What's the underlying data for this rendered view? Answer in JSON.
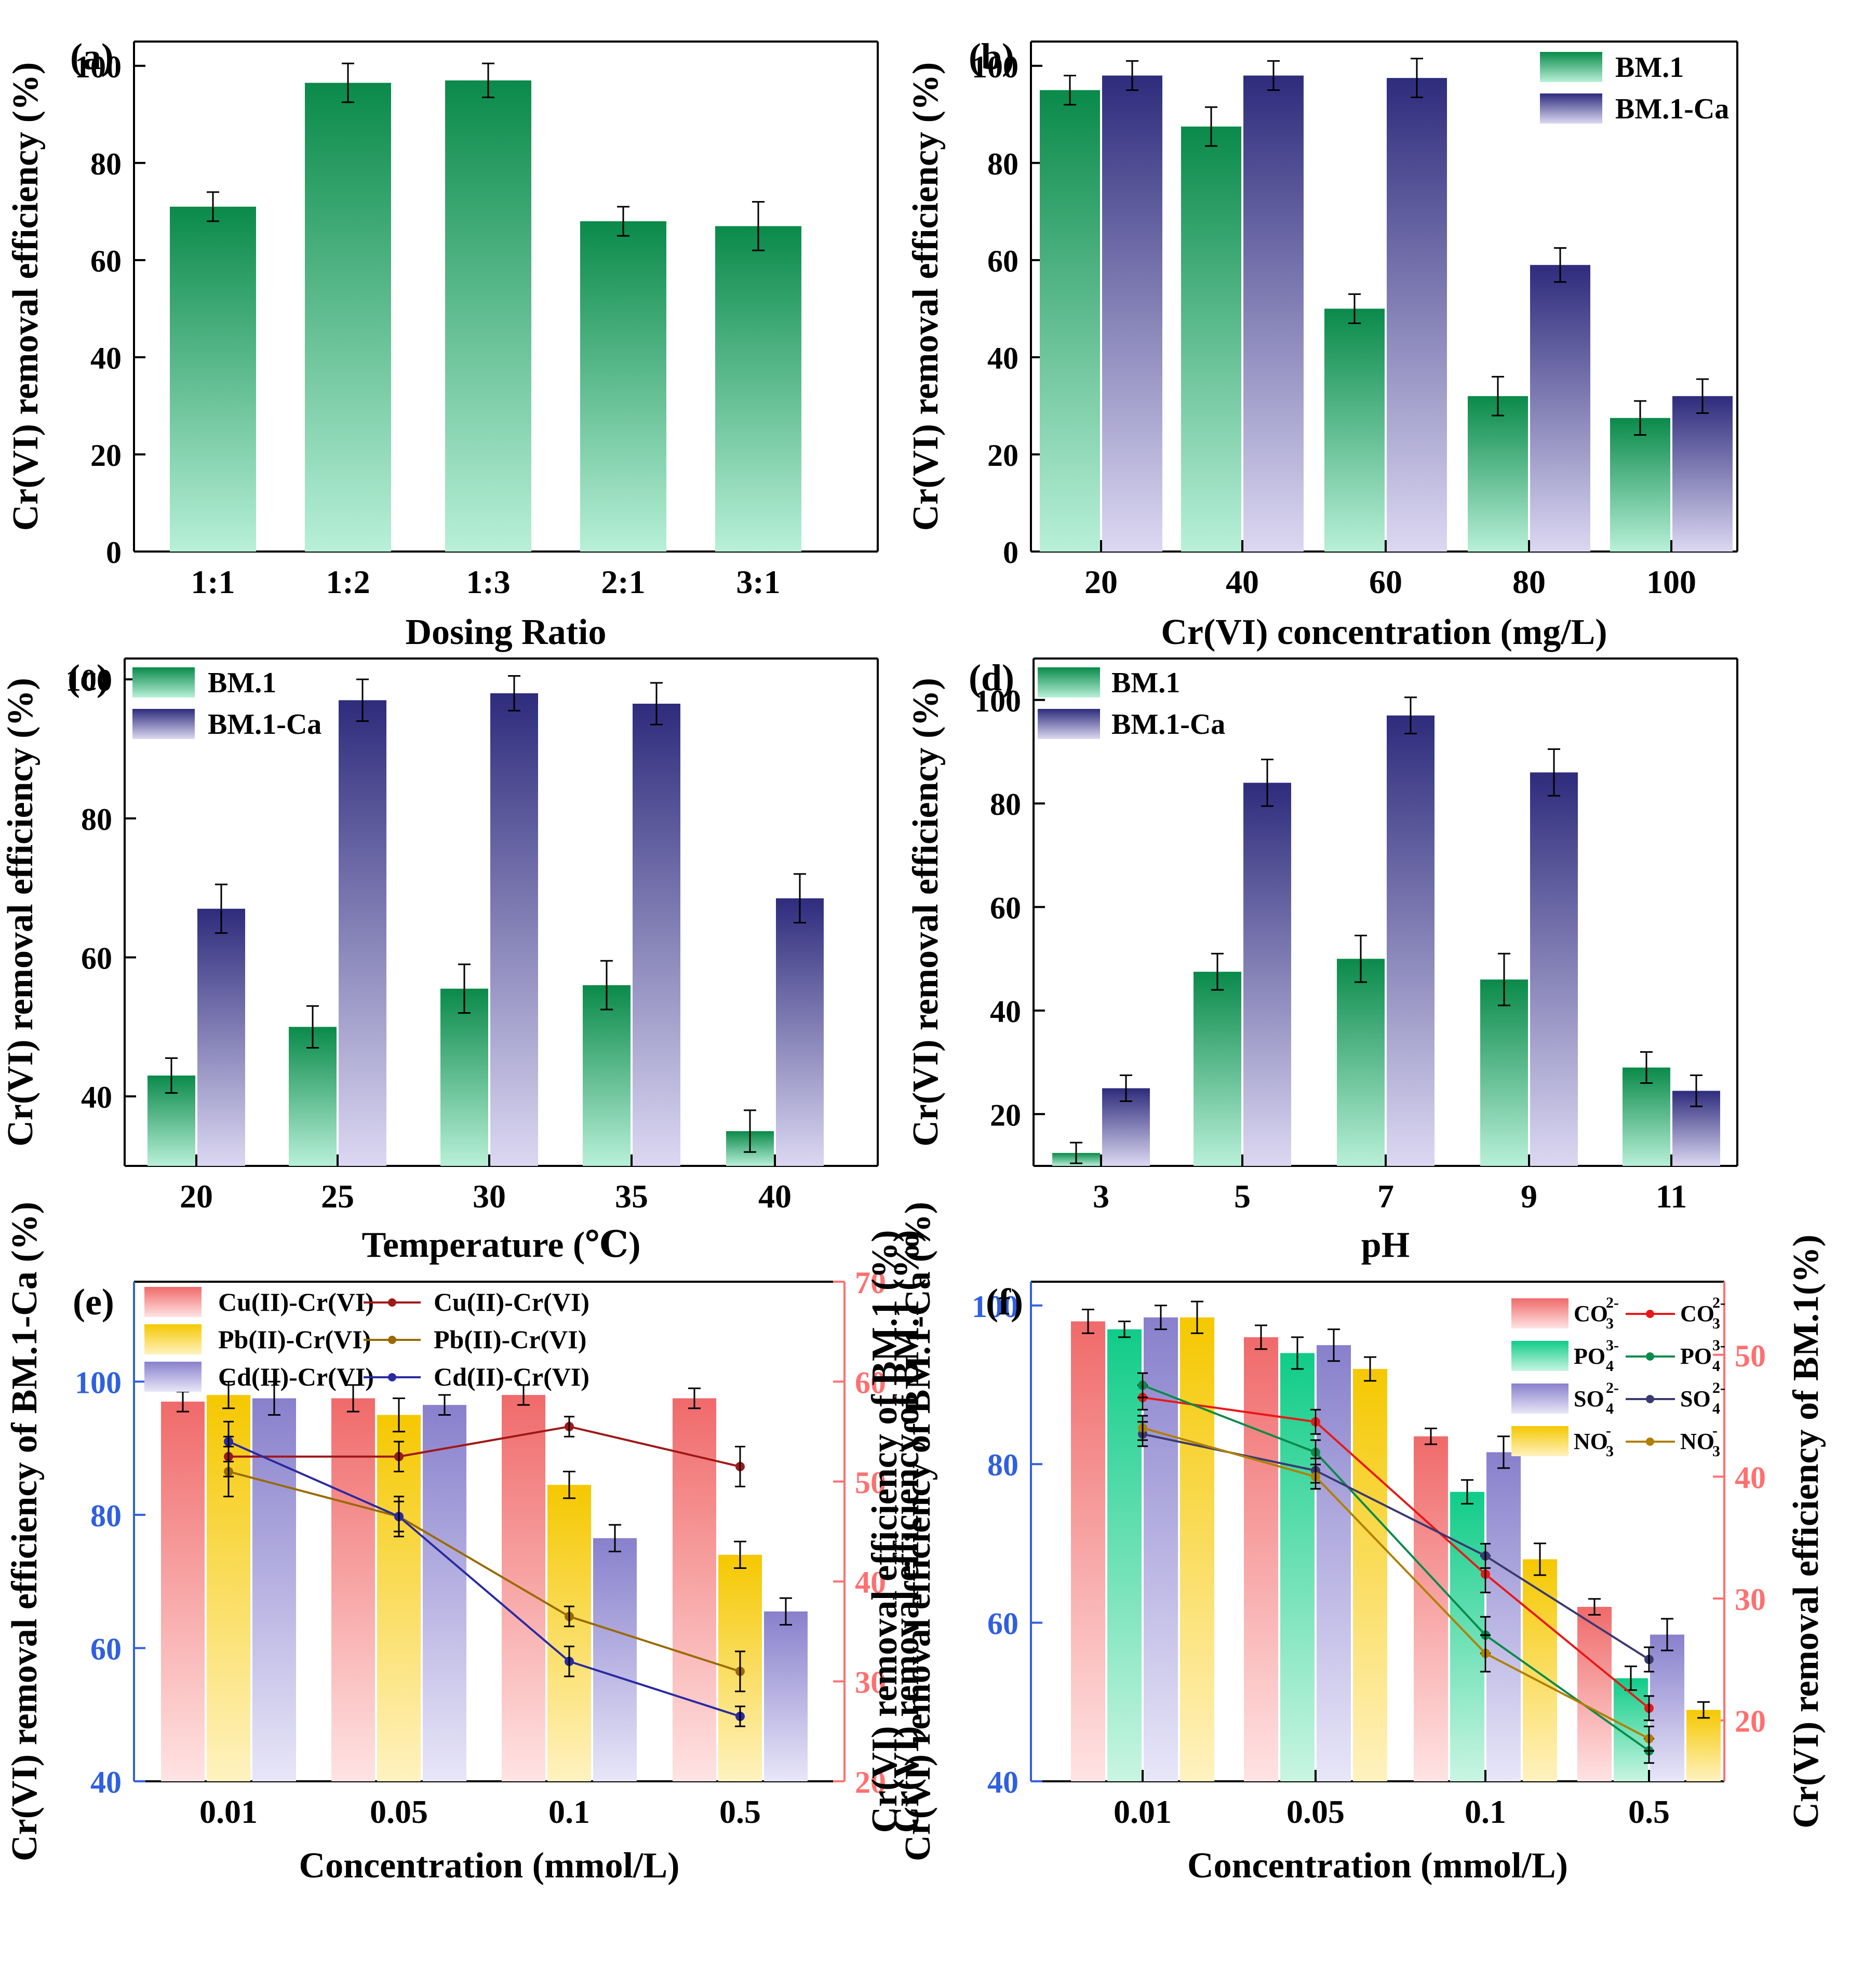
{
  "figure": {
    "title": "Cr(VI) removal efficiency panels"
  },
  "colors": {
    "green_top": "#0a8a4a",
    "green_bottom": "#b8f0d8",
    "navy_top": "#2e2c7c",
    "navy_bottom": "#dcd8f2",
    "red_top": "#f06a6a",
    "red_bottom": "#ffe3e3",
    "yellow_top": "#f5c800",
    "yellow_bottom": "#fff2c0",
    "lav_top": "#8880cc",
    "lav_bottom": "#e8e6f8",
    "teal_top": "#10cc88",
    "teal_bottom": "#c9f5e2",
    "line_cu": "#a01818",
    "line_pb": "#9a6a00",
    "line_cd": "#2a2aa0",
    "line_co3": "#e81818",
    "line_po4": "#0a8a4a",
    "line_so4": "#3a3a70",
    "line_no3": "#b08000",
    "axis_blue": "#3060e0",
    "axis_red": "#ff7070"
  },
  "chart_data": [
    {
      "id": "a",
      "type": "bar",
      "panel_label": "(a)",
      "title": "",
      "xlabel": "Dosing Ratio",
      "ylabel": "Cr(VI) removal efficiency (%)",
      "categories": [
        "1:1",
        "1:2",
        "1:3",
        "2:1",
        "3:1"
      ],
      "ylim": [
        0,
        105
      ],
      "yticks": [
        0,
        20,
        40,
        60,
        80,
        100
      ],
      "series": [
        {
          "name": "BM.1",
          "color": "green",
          "values": [
            71,
            96.5,
            97,
            68,
            67
          ],
          "errors": [
            3,
            4,
            3.5,
            3,
            5
          ]
        }
      ],
      "legend": null
    },
    {
      "id": "b",
      "type": "bar",
      "panel_label": "(b)",
      "xlabel": "Cr(VI) concentration (mg/L)",
      "ylabel": "Cr(VI) removal efficiency (%)",
      "categories": [
        "20",
        "40",
        "60",
        "80",
        "100"
      ],
      "ylim": [
        0,
        105
      ],
      "yticks": [
        0,
        20,
        40,
        60,
        80,
        100
      ],
      "series": [
        {
          "name": "BM.1",
          "color": "green",
          "values": [
            95,
            87.5,
            50,
            32,
            27.5
          ],
          "errors": [
            3,
            4,
            3,
            4,
            3.5
          ]
        },
        {
          "name": "BM.1-Ca",
          "color": "navy",
          "values": [
            98,
            98,
            97.5,
            59,
            32
          ],
          "errors": [
            3,
            3,
            4,
            3.5,
            3.5
          ]
        }
      ],
      "legend": "top-right"
    },
    {
      "id": "c",
      "type": "bar",
      "panel_label": "(c)",
      "xlabel": "Temperature (℃)",
      "ylabel": "Cr(VI) removal efficiency (%)",
      "categories": [
        "20",
        "25",
        "30",
        "35",
        "40"
      ],
      "ylim": [
        30,
        103
      ],
      "yticks": [
        40,
        60,
        80,
        100
      ],
      "series": [
        {
          "name": "BM.1",
          "color": "green",
          "values": [
            43,
            50,
            55.5,
            56,
            35
          ],
          "errors": [
            2.5,
            3,
            3.5,
            3.5,
            3
          ]
        },
        {
          "name": "BM.1-Ca",
          "color": "navy",
          "values": [
            67,
            97,
            98,
            96.5,
            68.5
          ],
          "errors": [
            3.5,
            3,
            2.5,
            3,
            3.5
          ]
        }
      ],
      "legend": "top-left"
    },
    {
      "id": "d",
      "type": "bar",
      "panel_label": "(d)",
      "xlabel": "pH",
      "ylabel": "Cr(VI) removal efficiency (%)",
      "categories": [
        "3",
        "5",
        "7",
        "9",
        "11"
      ],
      "ylim": [
        10,
        108
      ],
      "yticks": [
        20,
        40,
        60,
        80,
        100
      ],
      "series": [
        {
          "name": "BM.1",
          "color": "green",
          "values": [
            12.5,
            47.5,
            50,
            46,
            29
          ],
          "errors": [
            2,
            3.5,
            4.5,
            5,
            3
          ]
        },
        {
          "name": "BM.1-Ca",
          "color": "navy",
          "values": [
            25,
            84,
            97,
            86,
            24.5
          ],
          "errors": [
            2.5,
            4.5,
            3.5,
            4.5,
            3
          ]
        }
      ],
      "legend": "top-left"
    },
    {
      "id": "e",
      "type": "bar",
      "panel_label": "(e)",
      "xlabel": "Concentration (mmol/L)",
      "ylabel": "Cr(VI) removal efficiency of BM.1-Ca (%)",
      "y2label": "Cr(VI) removal efficiency of BM.1 (%)",
      "categories": [
        "0.01",
        "0.05",
        "0.1",
        "0.5"
      ],
      "ylim": [
        40,
        115
      ],
      "yticks": [
        40,
        60,
        80,
        100
      ],
      "y2lim": [
        20,
        70
      ],
      "y2ticks": [
        20,
        30,
        40,
        50,
        60,
        70
      ],
      "series": [
        {
          "name": "Cu(II)-Cr(VI)",
          "color": "red",
          "values": [
            97,
            97.5,
            98,
            97.5
          ],
          "errors": [
            1.5,
            2,
            1.5,
            1.5
          ]
        },
        {
          "name": "Pb(II)-Cr(VI)",
          "color": "yellow",
          "values": [
            98,
            95,
            84.5,
            74
          ],
          "errors": [
            2,
            2.5,
            2,
            2
          ]
        },
        {
          "name": "Cd(II)-Cr(VI)",
          "color": "lavender",
          "values": [
            97.5,
            96.5,
            76.5,
            65.5
          ],
          "errors": [
            2.5,
            1.5,
            2,
            2
          ]
        }
      ],
      "lines": [
        {
          "name": "Cu(II)-Cr(VI)",
          "color": "line_cu",
          "values": [
            52.5,
            52.5,
            55.5,
            51.5
          ],
          "errors": [
            2,
            1.5,
            1,
            2
          ]
        },
        {
          "name": "Pb(II)-Cr(VI)",
          "color": "line_pb",
          "values": [
            51,
            46.5,
            36.5,
            31
          ],
          "errors": [
            2.5,
            2,
            1,
            2
          ]
        },
        {
          "name": "Cd(II)-Cr(VI)",
          "color": "line_cd",
          "values": [
            54,
            46.5,
            32,
            26.5
          ],
          "errors": [
            2,
            1.5,
            1.5,
            1
          ]
        }
      ],
      "legend": "top"
    },
    {
      "id": "f",
      "type": "bar",
      "panel_label": "(f)",
      "xlabel": "Concentration (mmol/L)",
      "ylabel": "Cr(VI) removal efficiency of BM.1-Ca (%)",
      "ylabel_overlap": "Cr(VI) removal efficiency of BM.1 (%)",
      "y2label": "Cr(VI) removal efficiency of BM.1(%)",
      "categories": [
        "0.01",
        "0.05",
        "0.1",
        "0.5"
      ],
      "ylim": [
        40,
        103
      ],
      "yticks": [
        40,
        60,
        80,
        100
      ],
      "y2lim": [
        15,
        56
      ],
      "y2ticks": [
        20,
        30,
        40,
        50
      ],
      "series": [
        {
          "name": "CO3 2-",
          "color": "red",
          "values": [
            98,
            96,
            83.5,
            62
          ],
          "errors": [
            1.5,
            1.5,
            1,
            1
          ]
        },
        {
          "name": "PO4 3-",
          "color": "teal",
          "values": [
            97,
            94,
            76.5,
            53
          ],
          "errors": [
            1,
            2,
            1.5,
            1.5
          ]
        },
        {
          "name": "SO4 2-",
          "color": "lavender",
          "values": [
            98.5,
            95,
            81.5,
            58.5
          ],
          "errors": [
            1.5,
            2,
            2,
            2
          ]
        },
        {
          "name": "NO3 -",
          "color": "yellow",
          "values": [
            98.5,
            92,
            68,
            49
          ],
          "errors": [
            2,
            1.5,
            2,
            1
          ]
        }
      ],
      "lines": [
        {
          "name": "CO3 2-",
          "color": "line_co3",
          "values": [
            46.5,
            44.5,
            32,
            21
          ],
          "errors": [
            1,
            1,
            1.5,
            1
          ]
        },
        {
          "name": "PO4 3-",
          "color": "line_po4",
          "values": [
            47.5,
            42,
            27,
            17.5
          ],
          "errors": [
            1,
            1,
            1.5,
            1
          ]
        },
        {
          "name": "SO4 2-",
          "color": "line_so4",
          "values": [
            43.5,
            40.5,
            33.5,
            25
          ],
          "errors": [
            1,
            1,
            1,
            1
          ]
        },
        {
          "name": "NO3 -",
          "color": "line_no3",
          "values": [
            44,
            40,
            25.5,
            18.5
          ],
          "errors": [
            1,
            1,
            1.5,
            1
          ]
        }
      ],
      "legend": "top-right"
    }
  ],
  "legend_labels": {
    "bm1": "BM.1",
    "bm1ca": "BM.1-Ca",
    "cu": "Cu(II)-Cr(VI)",
    "pb": "Pb(II)-Cr(VI)",
    "cd": "Cd(II)-Cr(VI)",
    "co3_base": "CO",
    "co3_sub": "3",
    "co3_sup": "2-",
    "po4_base": "PO",
    "po4_sub": "4",
    "po4_sup": "3-",
    "so4_base": "SO",
    "so4_sub": "4",
    "so4_sup": "2-",
    "no3_base": "NO",
    "no3_sub": "3",
    "no3_sup": "-"
  }
}
